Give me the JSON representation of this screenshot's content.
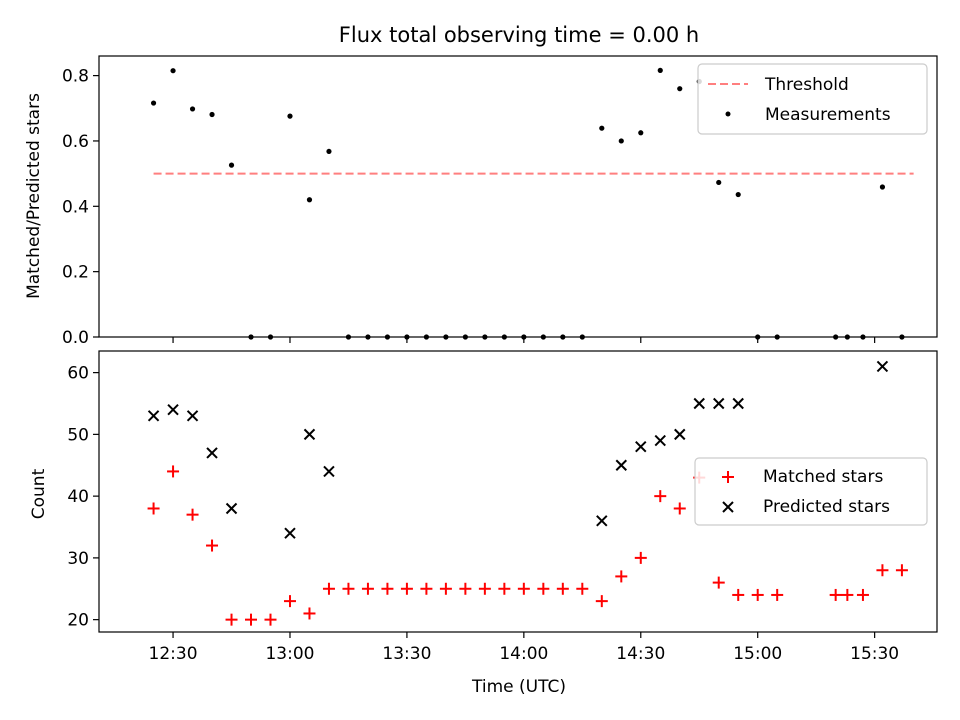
{
  "chart_data": [
    {
      "type": "scatter",
      "title": "Flux total observing time = 0.00 h",
      "xlabel": "",
      "ylabel": "Matched/Predicted stars",
      "ylim": [
        0,
        0.86
      ],
      "yticks": [
        "0.0",
        "0.2",
        "0.4",
        "0.6",
        "0.8"
      ],
      "ytick_values": [
        0,
        0.2,
        0.4,
        0.6,
        0.8
      ],
      "legend_position": "top-right",
      "threshold": {
        "name": "Threshold",
        "value": 0.5,
        "x_start": "12:25",
        "x_end": "15:40",
        "color": "#ff7f7f"
      },
      "series": [
        {
          "name": "Measurements",
          "color": "#000000",
          "x": [
            "12:25",
            "12:30",
            "12:35",
            "12:40",
            "12:45",
            "12:50",
            "12:55",
            "13:00",
            "13:05",
            "13:10",
            "13:15",
            "13:20",
            "13:25",
            "13:30",
            "13:35",
            "13:40",
            "13:45",
            "13:50",
            "13:55",
            "14:00",
            "14:05",
            "14:10",
            "14:15",
            "14:20",
            "14:25",
            "14:30",
            "14:35",
            "14:40",
            "14:45",
            "14:50",
            "14:55",
            "15:00",
            "15:05",
            "15:20",
            "15:23",
            "15:27",
            "15:32",
            "15:37"
          ],
          "y": [
            0.716,
            0.815,
            0.698,
            0.681,
            0.526,
            0,
            0,
            0.676,
            0.42,
            0.568,
            0,
            0,
            0,
            0,
            0,
            0,
            0,
            0,
            0,
            0,
            0,
            0,
            0,
            0.639,
            0.6,
            0.625,
            0.816,
            0.76,
            0.782,
            0.473,
            0.436,
            0,
            0,
            0,
            0,
            0,
            0.459,
            0
          ]
        }
      ]
    },
    {
      "type": "scatter",
      "title": "",
      "xlabel": "Time (UTC)",
      "ylabel": "Count",
      "ylim": [
        18,
        63.5
      ],
      "yticks": [
        "20",
        "30",
        "40",
        "50",
        "60"
      ],
      "ytick_values": [
        20,
        30,
        40,
        50,
        60
      ],
      "xticks": [
        "12:30",
        "13:00",
        "13:30",
        "14:00",
        "14:30",
        "15:00",
        "15:30"
      ],
      "xlim": [
        "12:11",
        "15:46"
      ],
      "legend_position": "center-right",
      "series": [
        {
          "name": "Matched stars",
          "marker": "plus",
          "color": "#ff0000",
          "x": [
            "12:25",
            "12:30",
            "12:35",
            "12:40",
            "12:45",
            "12:50",
            "12:55",
            "13:00",
            "13:05",
            "13:10",
            "13:15",
            "13:20",
            "13:25",
            "13:30",
            "13:35",
            "13:40",
            "13:45",
            "13:50",
            "13:55",
            "14:00",
            "14:05",
            "14:10",
            "14:15",
            "14:20",
            "14:25",
            "14:30",
            "14:35",
            "14:40",
            "14:45",
            "14:50",
            "14:55",
            "15:00",
            "15:05",
            "15:20",
            "15:23",
            "15:27",
            "15:32",
            "15:37"
          ],
          "y": [
            38,
            44,
            37,
            32,
            20,
            20,
            20,
            23,
            21,
            25,
            25,
            25,
            25,
            25,
            25,
            25,
            25,
            25,
            25,
            25,
            25,
            25,
            25,
            23,
            27,
            30,
            40,
            38,
            43,
            26,
            24,
            24,
            24,
            24,
            24,
            24,
            28,
            28
          ]
        },
        {
          "name": "Predicted stars",
          "marker": "x",
          "color": "#000000",
          "x": [
            "12:25",
            "12:30",
            "12:35",
            "12:40",
            "12:45",
            "13:00",
            "13:05",
            "13:10",
            "14:20",
            "14:25",
            "14:30",
            "14:35",
            "14:40",
            "14:45",
            "14:50",
            "14:55",
            "15:32"
          ],
          "y": [
            53,
            54,
            53,
            47,
            38,
            34,
            50,
            44,
            36,
            45,
            48,
            49,
            50,
            55,
            55,
            55,
            61
          ]
        }
      ]
    }
  ]
}
